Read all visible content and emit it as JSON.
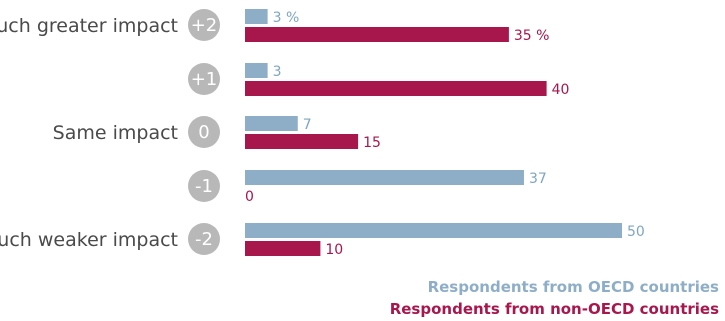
{
  "chart_data": {
    "type": "bar",
    "orientation": "horizontal",
    "categories": [
      "+2",
      "+1",
      "0",
      "-1",
      "-2"
    ],
    "category_labels": [
      "Much greater impact",
      "",
      "Same impact",
      "",
      "Much weaker impact"
    ],
    "series": [
      {
        "name": "Respondents from OECD countries",
        "values": [
          3,
          3,
          7,
          37,
          50
        ],
        "value_labels": [
          "3 %",
          "3",
          "7",
          "37",
          "50"
        ],
        "color": "#8eaec8",
        "label_color": "#7ea6c2"
      },
      {
        "name": "Respondents from non-OECD countries",
        "values": [
          35,
          40,
          15,
          0,
          10
        ],
        "value_labels": [
          "35 %",
          "40",
          "15",
          "0",
          "10"
        ],
        "color": "#a8174c",
        "label_color": "#a8174c"
      }
    ],
    "xlim": [
      0,
      50
    ],
    "grid": false,
    "legend_position": "bottom-right",
    "unit": "%"
  },
  "colors": {
    "score_circle": "#b8b8b8",
    "category_text": "#4a4a4a"
  }
}
